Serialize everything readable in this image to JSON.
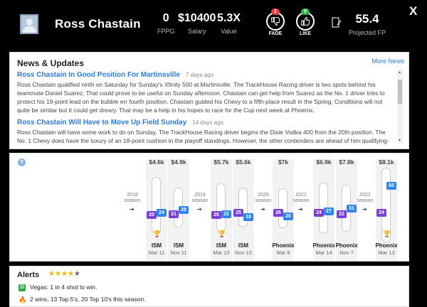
{
  "header": {
    "player_name": "Ross Chastain",
    "stats": [
      {
        "value": "0",
        "label": "FPPG"
      },
      {
        "value": "$10400",
        "label": "Salary"
      },
      {
        "value": "5.3X",
        "label": "Value"
      }
    ],
    "fade": {
      "count": "1",
      "label": "FADE",
      "color": "#e83e3e"
    },
    "like": {
      "count": "0",
      "label": "LIKE",
      "color": "#2cb34a"
    },
    "projected_fp": {
      "value": "55.4",
      "label": "Projected FP"
    },
    "close_label": "X"
  },
  "news": {
    "title": "News & Updates",
    "more_link": "More News",
    "items": [
      {
        "headline": "Ross Chastain In Good Position For Martinsville",
        "age": "7 days ago",
        "body": "Ross Chastain qualified ninth on Saturday for Sunday's Xfinity 500 at Martinsville. The TrackHouse Racing driver is two spots behind his teammate Daniel Suarez. That could prove to be useful on Sunday afternoon. Chastain can get help from Suarez as the No. 1 driver tries to protect his 19-point lead on the bubble err fourth position. Chastain guided his Chevy to a fifth-place result in the Spring. Conditions will not quite be similar but it could get dreary. That may be a help in his hopes to race for the Cup next week at Phoenix."
      },
      {
        "headline": "Ross Chastain Will Have to Move Up Field Sunday",
        "age": "14 days ago",
        "body": "Ross Chastain will have some work to do on Sunday. The TrackHouse Racing driver begins the Dixie Vodka 400 from the 20th position. The No. 1 Chevy does have the luxury of an 18-point cushion in the playoff standings. However, the other contenders are ahead of him qualifying-wise this week. His"
      }
    ]
  },
  "timeline": {
    "help_icon": "question-icon",
    "seasons": [
      {
        "year": "2018",
        "label": "season"
      },
      {
        "year": "2019",
        "label": "season"
      },
      {
        "year": "2020",
        "label": "season"
      },
      {
        "year": "2021",
        "label": "season"
      },
      {
        "year": "2022",
        "label": "season"
      }
    ],
    "races": [
      {
        "price": "$4.6k",
        "track": "ISM",
        "date": "Mar 11",
        "start": "20",
        "finish": "24",
        "trophy": true
      },
      {
        "price": "$4.9k",
        "track": "ISM",
        "date": "Nov 11",
        "start": "21",
        "finish": "28",
        "trophy": false
      },
      {
        "price": "$5.7k",
        "track": "ISM",
        "date": "Mar 10",
        "start": "20",
        "finish": "22",
        "trophy": true
      },
      {
        "price": "$5.6k",
        "track": "ISM",
        "date": "Nov 10",
        "start": "25",
        "finish": "18",
        "trophy": false
      },
      {
        "price": "$7k",
        "track": "Phoenix",
        "date": "Mar 8",
        "start": "26",
        "finish": "20",
        "trophy": false
      },
      {
        "price": "$6.9k",
        "track": "Phoenix",
        "date": "Mar 14",
        "start": "24",
        "finish": "27",
        "trophy": false
      },
      {
        "price": "$7.8k",
        "track": "Phoenix",
        "date": "Nov 7",
        "start": "22",
        "finish": "31",
        "trophy": false
      },
      {
        "price": "$8.1k",
        "track": "Phoenix",
        "date": "Mar 13",
        "start": "24",
        "finish": "65",
        "trophy": true
      }
    ]
  },
  "alerts": {
    "title": "Alerts",
    "rating": 4,
    "rating_max": 5,
    "rows": [
      {
        "icon": "dice-icon",
        "text": "Vegas: 1 in 4 shot to win."
      },
      {
        "icon": "flame-icon",
        "text": "2 wins, 13 Top 5's, 20 Top 10's this season."
      }
    ]
  }
}
